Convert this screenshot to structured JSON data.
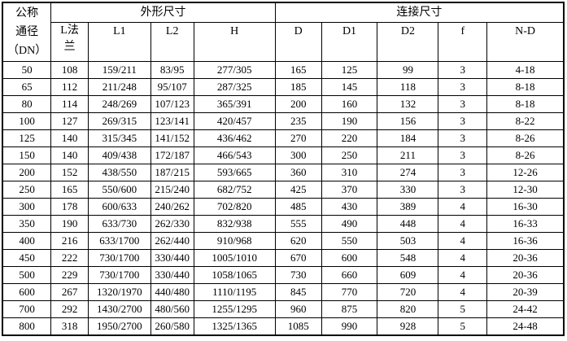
{
  "chart_data": {
    "type": "table",
    "corner_header": "公称\n通径\n（DN）",
    "group_headers": [
      "外形尺寸",
      "连接尺寸"
    ],
    "sub_headers": [
      "L法\n兰",
      "L1",
      "L2",
      "H",
      "D",
      "D1",
      "D2",
      "f",
      "N-D"
    ],
    "rows": [
      [
        "50",
        "108",
        "159/211",
        "83/95",
        "277/305",
        "165",
        "125",
        "99",
        "3",
        "4-18"
      ],
      [
        "65",
        "112",
        "211/248",
        "95/107",
        "287/325",
        "185",
        "145",
        "118",
        "3",
        "8-18"
      ],
      [
        "80",
        "114",
        "248/269",
        "107/123",
        "365/391",
        "200",
        "160",
        "132",
        "3",
        "8-18"
      ],
      [
        "100",
        "127",
        "269/315",
        "123/141",
        "420/457",
        "235",
        "190",
        "156",
        "3",
        "8-22"
      ],
      [
        "125",
        "140",
        "315/345",
        "141/152",
        "436/462",
        "270",
        "220",
        "184",
        "3",
        "8-26"
      ],
      [
        "150",
        "140",
        "409/438",
        "172/187",
        "466/543",
        "300",
        "250",
        "211",
        "3",
        "8-26"
      ],
      [
        "200",
        "152",
        "438/550",
        "187/215",
        "593/665",
        "360",
        "310",
        "274",
        "3",
        "12-26"
      ],
      [
        "250",
        "165",
        "550/600",
        "215/240",
        "682/752",
        "425",
        "370",
        "330",
        "3",
        "12-30"
      ],
      [
        "300",
        "178",
        "600/633",
        "240/262",
        "702/820",
        "485",
        "430",
        "389",
        "4",
        "16-30"
      ],
      [
        "350",
        "190",
        "633/730",
        "262/330",
        "832/938",
        "555",
        "490",
        "448",
        "4",
        "16-33"
      ],
      [
        "400",
        "216",
        "633/1700",
        "262/440",
        "910/968",
        "620",
        "550",
        "503",
        "4",
        "16-36"
      ],
      [
        "450",
        "222",
        "730/1700",
        "330/440",
        "1005/1010",
        "670",
        "600",
        "548",
        "4",
        "20-36"
      ],
      [
        "500",
        "229",
        "730/1700",
        "330/440",
        "1058/1065",
        "730",
        "660",
        "609",
        "4",
        "20-36"
      ],
      [
        "600",
        "267",
        "1320/1970",
        "440/480",
        "1110/1195",
        "845",
        "770",
        "720",
        "4",
        "20-39"
      ],
      [
        "700",
        "292",
        "1430/2700",
        "480/560",
        "1255/1295",
        "960",
        "875",
        "820",
        "5",
        "24-42"
      ],
      [
        "800",
        "318",
        "1950/2700",
        "260/580",
        "1325/1365",
        "1085",
        "990",
        "928",
        "5",
        "24-48"
      ]
    ]
  }
}
